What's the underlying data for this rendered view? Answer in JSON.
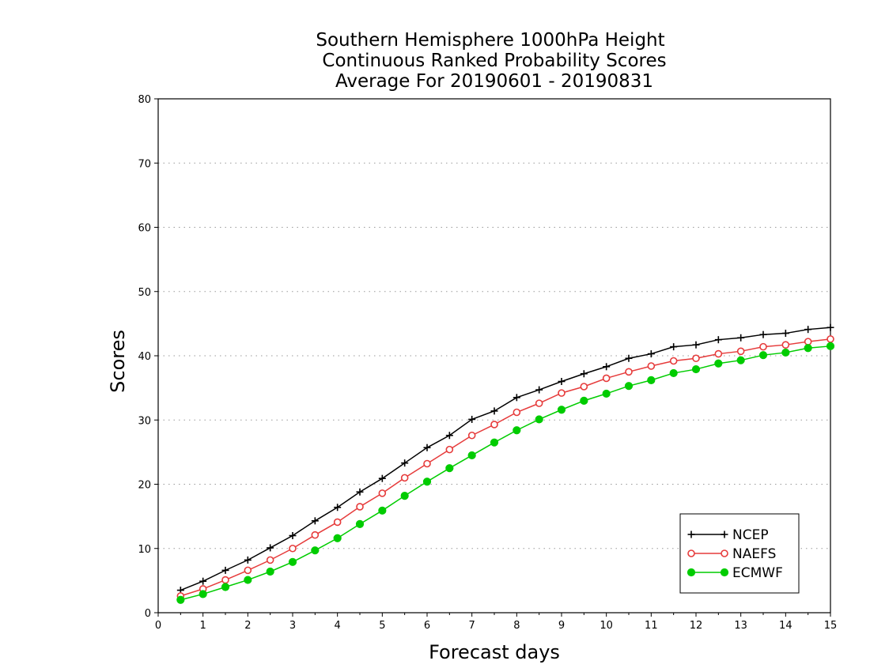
{
  "chart_data": {
    "type": "line",
    "title_lines": [
      "Southern Hemisphere 1000hPa Height",
      "Continuous Ranked Probability Scores",
      "Average For 20190601 - 20190831"
    ],
    "xlabel": "Forecast days",
    "ylabel": "Scores",
    "xlim": [
      0,
      15
    ],
    "ylim": [
      0,
      80
    ],
    "xticks": [
      "0",
      "1",
      "2",
      "3",
      "4",
      "5",
      "6",
      "7",
      "8",
      "9",
      "10",
      "11",
      "12",
      "13",
      "14",
      "15"
    ],
    "yticks": [
      "0",
      "10",
      "20",
      "30",
      "40",
      "50",
      "60",
      "70",
      "80"
    ],
    "grid": "horizontal dotted",
    "legend_position": "lower-right",
    "x": [
      0.5,
      1,
      1.5,
      2,
      2.5,
      3,
      3.5,
      4,
      4.5,
      5,
      5.5,
      6,
      6.5,
      7,
      7.5,
      8,
      8.5,
      9,
      9.5,
      10,
      10.5,
      11,
      11.5,
      12,
      12.5,
      13,
      13.5,
      14,
      14.5,
      15
    ],
    "series": [
      {
        "name": "NCEP",
        "color": "#000000",
        "marker": "plus",
        "values": [
          3.5,
          4.9,
          6.6,
          8.2,
          10.1,
          12.0,
          14.3,
          16.4,
          18.8,
          20.9,
          23.3,
          25.7,
          27.6,
          30.1,
          31.4,
          33.5,
          34.7,
          36.0,
          37.2,
          38.3,
          39.6,
          40.3,
          41.4,
          41.7,
          42.5,
          42.8,
          43.3,
          43.5,
          44.1,
          44.4
        ]
      },
      {
        "name": "NAEFS",
        "color": "#e63b3b",
        "marker": "open-circle",
        "values": [
          2.6,
          3.7,
          5.1,
          6.6,
          8.2,
          10.0,
          12.1,
          14.1,
          16.5,
          18.6,
          21.0,
          23.2,
          25.4,
          27.6,
          29.3,
          31.2,
          32.6,
          34.2,
          35.2,
          36.5,
          37.5,
          38.4,
          39.2,
          39.6,
          40.3,
          40.7,
          41.4,
          41.7,
          42.2,
          42.6
        ]
      },
      {
        "name": "ECMWF",
        "color": "#00cc00",
        "marker": "filled-circle",
        "values": [
          2.0,
          2.9,
          4.0,
          5.1,
          6.4,
          7.9,
          9.7,
          11.6,
          13.8,
          15.9,
          18.2,
          20.4,
          22.5,
          24.5,
          26.5,
          28.4,
          30.1,
          31.6,
          33.0,
          34.1,
          35.3,
          36.2,
          37.3,
          37.9,
          38.8,
          39.3,
          40.1,
          40.5,
          41.2,
          41.5
        ]
      }
    ]
  }
}
